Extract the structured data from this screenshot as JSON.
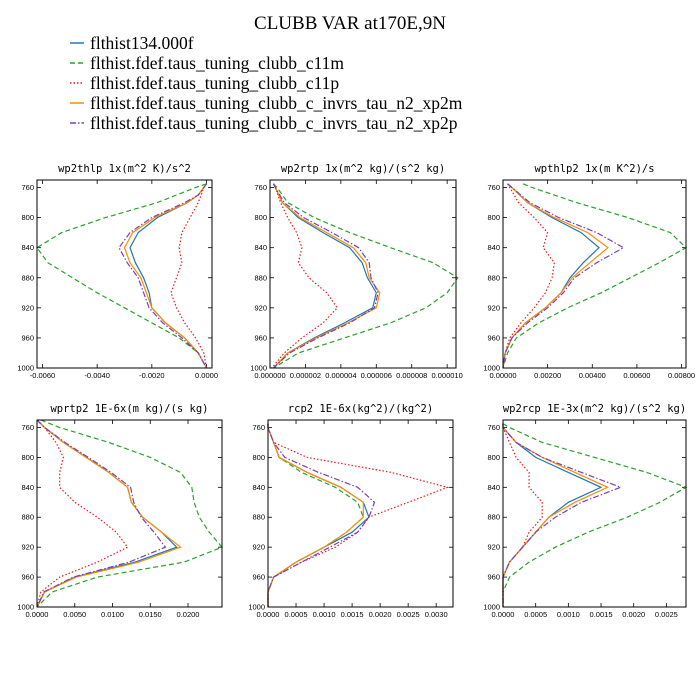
{
  "title": "CLUBB VAR at170E,9N",
  "series": [
    {
      "name": "flthist134.000f",
      "color": "#1f77b4",
      "dash": "solid"
    },
    {
      "name": "flthist.fdef.taus_tuning_clubb_c11m",
      "color": "#2ca02c",
      "dash": "dashed"
    },
    {
      "name": "flthist.fdef.taus_tuning_clubb_c11p",
      "color": "#e41a1c",
      "dash": "dotted"
    },
    {
      "name": "flthist.fdef.taus_tuning_clubb_c_invrs_tau_n2_xp2m",
      "color": "#ff8c00",
      "dash": "solid"
    },
    {
      "name": "flthist.fdef.taus_tuning_clubb_c_invrs_tau_n2_xp2p",
      "color": "#7b3fb5",
      "dash": "dashdot"
    }
  ],
  "chart_data": [
    {
      "type": "line",
      "title": "wp2thlp  1x(m^2 K)/s^2",
      "y_axis": "pressure (inverted)",
      "ylim": [
        1000,
        750
      ],
      "xlim": [
        -0.0062,
        0.0002
      ],
      "xticks": [
        "-0.0060",
        "-0.0040",
        "-0.0020",
        "0.0000"
      ],
      "xtick_values": [
        -0.006,
        -0.004,
        -0.002,
        0.0
      ],
      "yticks": [
        "760",
        "800",
        "840",
        "880",
        "920",
        "960",
        "1000"
      ],
      "y": [
        755,
        760,
        770,
        780,
        800,
        820,
        840,
        860,
        880,
        900,
        920,
        940,
        960,
        980,
        1000
      ],
      "series_values": [
        [
          0.0,
          -0.0001,
          -0.0003,
          -0.0007,
          -0.0018,
          -0.0025,
          -0.0028,
          -0.0026,
          -0.0023,
          -0.0021,
          -0.002,
          -0.0015,
          -0.0008,
          -0.0003,
          0.0
        ],
        [
          0.0,
          -0.0004,
          -0.0011,
          -0.0018,
          -0.0037,
          -0.0053,
          -0.0062,
          -0.0058,
          -0.0049,
          -0.004,
          -0.003,
          -0.002,
          -0.001,
          -0.0003,
          0.0
        ],
        [
          0.0,
          -0.0001,
          -0.0002,
          -0.0003,
          -0.0006,
          -0.0009,
          -0.001,
          -0.0009,
          -0.0011,
          -0.0013,
          -0.0011,
          -0.0008,
          -0.0004,
          -0.0001,
          0.0
        ],
        [
          0.0,
          -0.0001,
          -0.0003,
          -0.0007,
          -0.0019,
          -0.0027,
          -0.003,
          -0.0028,
          -0.0024,
          -0.0022,
          -0.002,
          -0.0015,
          -0.0008,
          -0.0003,
          0.0
        ],
        [
          0.0,
          -0.0001,
          -0.0003,
          -0.0008,
          -0.002,
          -0.0028,
          -0.0032,
          -0.0029,
          -0.0025,
          -0.0023,
          -0.0021,
          -0.0016,
          -0.0009,
          -0.0003,
          0.0
        ]
      ]
    },
    {
      "type": "line",
      "title": "wp2rtp  1x(m^2 kg)/(s^2 kg)",
      "y_axis": "pressure (inverted)",
      "ylim": [
        1000,
        750
      ],
      "xlim": [
        0.0,
        1.05e-05
      ],
      "xticks": [
        "0.000000",
        "0.000002",
        "0.000004",
        "0.000006",
        "0.000008",
        "0.000010"
      ],
      "xtick_values": [
        0.0,
        2e-06,
        4e-06,
        6e-06,
        8e-06,
        1e-05
      ],
      "yticks": [
        "760",
        "800",
        "840",
        "880",
        "920",
        "960",
        "1000"
      ],
      "y": [
        755,
        760,
        780,
        800,
        820,
        840,
        860,
        880,
        900,
        920,
        940,
        960,
        980,
        1000
      ],
      "series_values": [
        [
          2e-07,
          3e-07,
          7e-07,
          1.6e-06,
          3e-06,
          4.5e-06,
          5.2e-06,
          5.5e-06,
          6e-06,
          5.8e-06,
          4.2e-06,
          2.5e-06,
          1e-06,
          2e-07
        ],
        [
          2e-07,
          4e-07,
          1e-06,
          2.5e-06,
          4.5e-06,
          6.8e-06,
          9.2e-06,
          1.06e-05,
          1e-05,
          8.8e-06,
          6.8e-06,
          4.2e-06,
          1.6e-06,
          2e-07
        ],
        [
          2e-07,
          3e-07,
          6e-07,
          1e-06,
          1.5e-06,
          1.8e-06,
          1.6e-06,
          2.2e-06,
          3.2e-06,
          3.8e-06,
          3e-06,
          1.8e-06,
          8e-07,
          1e-07
        ],
        [
          2e-07,
          3e-07,
          7e-07,
          1.7e-06,
          3.2e-06,
          4.7e-06,
          5.4e-06,
          5.6e-06,
          6.2e-06,
          6e-06,
          4.4e-06,
          2.6e-06,
          1e-06,
          2e-07
        ],
        [
          2e-07,
          3e-07,
          8e-07,
          1.9e-06,
          3.5e-06,
          5e-06,
          5.6e-06,
          5.7e-06,
          6.1e-06,
          5.9e-06,
          4.5e-06,
          2.7e-06,
          1.1e-06,
          2e-07
        ]
      ]
    },
    {
      "type": "line",
      "title": "wpthlp2  1x(m K^2)/s",
      "y_axis": "pressure (inverted)",
      "ylim": [
        1000,
        750
      ],
      "xlim": [
        0.0,
        0.0082
      ],
      "xticks": [
        "0.00000",
        "0.00200",
        "0.00400",
        "0.00600",
        "0.00800"
      ],
      "xtick_values": [
        0.0,
        0.002,
        0.004,
        0.006,
        0.008
      ],
      "yticks": [
        "760",
        "800",
        "840",
        "880",
        "920",
        "960",
        "1000"
      ],
      "y": [
        755,
        760,
        780,
        800,
        820,
        840,
        860,
        880,
        900,
        920,
        940,
        960,
        980,
        1000
      ],
      "series_values": [
        [
          0.0002,
          0.0004,
          0.0011,
          0.0022,
          0.0035,
          0.0043,
          0.0036,
          0.003,
          0.0026,
          0.0019,
          0.001,
          0.0004,
          0.0001,
          0.0
        ],
        [
          0.0009,
          0.0013,
          0.0033,
          0.0056,
          0.0075,
          0.0082,
          0.007,
          0.0057,
          0.0044,
          0.0029,
          0.0016,
          0.0006,
          0.0002,
          0.0
        ],
        [
          0.0002,
          0.0003,
          0.0007,
          0.0014,
          0.002,
          0.0018,
          0.0023,
          0.0022,
          0.0019,
          0.0014,
          0.0008,
          0.0003,
          0.0001,
          0.0
        ],
        [
          0.0002,
          0.0004,
          0.0011,
          0.0023,
          0.0038,
          0.0047,
          0.0039,
          0.0031,
          0.0026,
          0.0019,
          0.001,
          0.0004,
          0.0001,
          0.0
        ],
        [
          0.0002,
          0.0004,
          0.0012,
          0.0025,
          0.0042,
          0.0054,
          0.0042,
          0.0032,
          0.0027,
          0.002,
          0.0011,
          0.0004,
          0.0001,
          0.0
        ]
      ]
    },
    {
      "type": "line",
      "title": "wprtp2  1E-6x(m kg)/(s kg)",
      "y_axis": "pressure (inverted)",
      "ylim": [
        1000,
        750
      ],
      "xlim": [
        0.0,
        0.0245
      ],
      "xticks": [
        "0.0000",
        "0.0050",
        "0.0100",
        "0.0150",
        "0.0200"
      ],
      "xtick_values": [
        0.0,
        0.005,
        0.01,
        0.015,
        0.02
      ],
      "yticks": [
        "760",
        "800",
        "840",
        "880",
        "920",
        "960",
        "1000"
      ],
      "y": [
        750,
        760,
        780,
        800,
        820,
        840,
        860,
        880,
        900,
        920,
        940,
        960,
        980,
        1000
      ],
      "series_values": [
        [
          0.0,
          0.001,
          0.0035,
          0.0065,
          0.0095,
          0.012,
          0.0125,
          0.014,
          0.0165,
          0.0185,
          0.013,
          0.005,
          0.001,
          0.0
        ],
        [
          0.0005,
          0.003,
          0.0095,
          0.015,
          0.019,
          0.0205,
          0.0208,
          0.0215,
          0.0228,
          0.0245,
          0.0195,
          0.008,
          0.002,
          0.0
        ],
        [
          0.0,
          0.001,
          0.0025,
          0.0035,
          0.003,
          0.003,
          0.005,
          0.008,
          0.0105,
          0.012,
          0.008,
          0.003,
          0.0005,
          0.0
        ],
        [
          0.0,
          0.001,
          0.0035,
          0.0065,
          0.0095,
          0.012,
          0.0125,
          0.014,
          0.0165,
          0.019,
          0.0135,
          0.0052,
          0.001,
          0.0
        ],
        [
          0.0,
          0.001,
          0.0037,
          0.0068,
          0.0098,
          0.0124,
          0.0128,
          0.0138,
          0.0155,
          0.017,
          0.0122,
          0.0048,
          0.0009,
          0.0
        ]
      ]
    },
    {
      "type": "line",
      "title": "rcp2  1E-6x(kg^2)/(kg^2)",
      "y_axis": "pressure (inverted)",
      "ylim": [
        1000,
        750
      ],
      "xlim": [
        0.0,
        0.0033
      ],
      "xticks": [
        "0.0000",
        "0.0005",
        "0.0010",
        "0.0015",
        "0.0020",
        "0.0025",
        "0.0030"
      ],
      "xtick_values": [
        0.0,
        0.0005,
        0.001,
        0.0015,
        0.002,
        0.0025,
        0.003
      ],
      "yticks": [
        "760",
        "800",
        "840",
        "880",
        "920",
        "960",
        "1000"
      ],
      "y": [
        755,
        760,
        780,
        800,
        820,
        840,
        860,
        880,
        900,
        920,
        940,
        960,
        980,
        1000
      ],
      "series_values": [
        [
          0.0,
          0.0,
          0.0001,
          0.0002,
          0.0007,
          0.0013,
          0.0017,
          0.0018,
          0.0015,
          0.001,
          0.0005,
          0.0001,
          0.0,
          0.0
        ],
        [
          0.0,
          0.0,
          0.0001,
          0.0002,
          0.0006,
          0.0012,
          0.0016,
          0.0017,
          0.0014,
          0.001,
          0.0005,
          0.0001,
          0.0,
          0.0
        ],
        [
          0.0,
          0.0,
          0.0001,
          0.0007,
          0.0022,
          0.0032,
          0.0025,
          0.0018,
          0.0016,
          0.0012,
          0.0006,
          0.0001,
          0.0,
          0.0
        ],
        [
          0.0,
          0.0,
          0.0001,
          0.0002,
          0.0007,
          0.0013,
          0.0017,
          0.0017,
          0.0014,
          0.001,
          0.0005,
          0.0001,
          0.0,
          0.0
        ],
        [
          0.0,
          0.0,
          0.0001,
          0.0003,
          0.0009,
          0.0016,
          0.0019,
          0.0018,
          0.0016,
          0.0011,
          0.0006,
          0.0001,
          0.0,
          0.0
        ]
      ]
    },
    {
      "type": "line",
      "title": "wp2rcp  1E-3x(m^2 kg)/(s^2 kg)",
      "y_axis": "pressure (inverted)",
      "ylim": [
        1000,
        750
      ],
      "xlim": [
        0.0,
        0.0028
      ],
      "xticks": [
        "0.0000",
        "0.0005",
        "0.0010",
        "0.0015",
        "0.0020",
        "0.0025"
      ],
      "xtick_values": [
        0.0,
        0.0005,
        0.001,
        0.0015,
        0.002,
        0.0025
      ],
      "yticks": [
        "760",
        "800",
        "840",
        "880",
        "920",
        "960",
        "1000"
      ],
      "y": [
        755,
        760,
        780,
        800,
        820,
        840,
        860,
        880,
        900,
        920,
        940,
        960,
        980,
        1000
      ],
      "series_values": [
        [
          0.0,
          0.0,
          0.0002,
          0.0005,
          0.001,
          0.0015,
          0.001,
          0.0007,
          0.0005,
          0.0003,
          0.0001,
          0.0,
          0.0,
          0.0
        ],
        [
          0.0,
          0.0001,
          0.0006,
          0.0014,
          0.0022,
          0.0028,
          0.0024,
          0.0019,
          0.0013,
          0.0008,
          0.0004,
          0.0001,
          0.0,
          0.0
        ],
        [
          0.0,
          0.0,
          0.0001,
          0.0002,
          0.0004,
          0.0004,
          0.0006,
          0.0006,
          0.0004,
          0.0003,
          0.0001,
          0.0,
          0.0,
          0.0
        ],
        [
          0.0,
          0.0,
          0.0002,
          0.0006,
          0.0011,
          0.0016,
          0.0011,
          0.0007,
          0.0005,
          0.0003,
          0.0001,
          0.0,
          0.0,
          0.0
        ],
        [
          0.0,
          0.0,
          0.0002,
          0.0006,
          0.0012,
          0.0018,
          0.0012,
          0.0008,
          0.0005,
          0.0003,
          0.0001,
          0.0,
          0.0,
          0.0
        ]
      ]
    }
  ]
}
